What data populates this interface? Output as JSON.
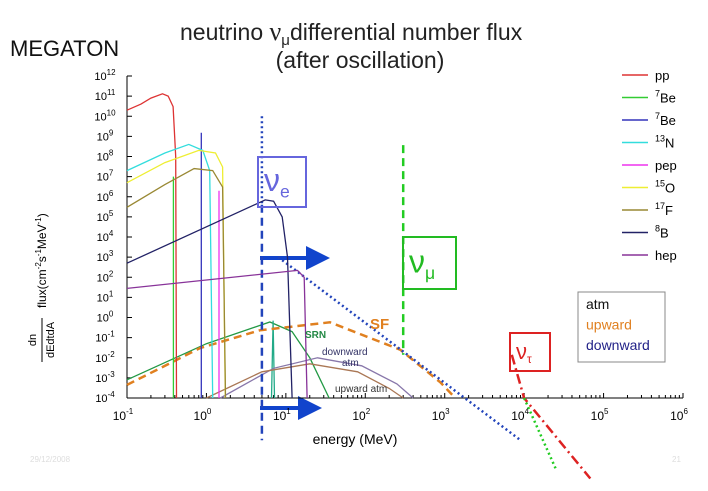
{
  "chart_data": {
    "type": "line",
    "title": "neutrino ",
    "title_symbol": "ν",
    "title_symbol_sub": "μ",
    "title_rest": "differential number flux",
    "subtitle": "(after oscillation)",
    "corner_label": "MEGATON",
    "y_label_num": "dn",
    "y_label_den": "dEdtdA",
    "y_label": [
      {
        "text": "flux(cm"
      },
      {
        "text": "-2",
        "sup": true
      },
      {
        "text": "s"
      },
      {
        "text": "-1",
        "sup": true
      },
      {
        "text": "MeV"
      },
      {
        "text": "-1",
        "sup": true
      },
      {
        "text": ")"
      }
    ],
    "x_label": "energy (MeV)",
    "log_x": true,
    "log_y": true,
    "xlim": [
      0.1,
      1000000
    ],
    "ylim": [
      0.0001,
      1000000000000
    ],
    "xticks": [
      {
        "value": 0.1,
        "label": "10",
        "power": "-1"
      },
      {
        "value": 1,
        "label": "10",
        "power": "0"
      },
      {
        "value": 10,
        "label": "10",
        "power": "1"
      },
      {
        "value": 100,
        "label": "10",
        "power": "2"
      },
      {
        "value": 1000,
        "label": "10",
        "power": "3"
      },
      {
        "value": 10000,
        "label": "10",
        "power": "4"
      },
      {
        "value": 100000,
        "label": "10",
        "power": "5"
      },
      {
        "value": 1000000,
        "label": "10",
        "power": "6"
      }
    ],
    "yticks": [
      {
        "value": 0.0001,
        "label": "10",
        "power": "-4"
      },
      {
        "value": 0.001,
        "label": "10",
        "power": "-3"
      },
      {
        "value": 0.01,
        "label": "10",
        "power": "-2"
      },
      {
        "value": 0.1,
        "label": "10",
        "power": "-1"
      },
      {
        "value": 1,
        "label": "10",
        "power": "0"
      },
      {
        "value": 10,
        "label": "10",
        "power": "1"
      },
      {
        "value": 100,
        "label": "10",
        "power": "2"
      },
      {
        "value": 1000,
        "label": "10",
        "power": "3"
      },
      {
        "value": 10000,
        "label": "10",
        "power": "4"
      },
      {
        "value": 100000,
        "label": "10",
        "power": "5"
      },
      {
        "value": 1000000,
        "label": "10",
        "power": "6"
      },
      {
        "value": 10000000,
        "label": "10",
        "power": "7"
      },
      {
        "value": 100000000,
        "label": "10",
        "power": "8"
      },
      {
        "value": 1000000000,
        "label": "10",
        "power": "9"
      },
      {
        "value": 10000000000,
        "label": "10",
        "power": "10"
      },
      {
        "value": 100000000000,
        "label": "10",
        "power": "11"
      },
      {
        "value": 1000000000000,
        "label": "10",
        "power": "12"
      }
    ],
    "legend": "right",
    "series": [
      {
        "name": "pp",
        "color": "#dd3333",
        "x": [
          0.1,
          0.15,
          0.2,
          0.28,
          0.33,
          0.38,
          0.41,
          0.42
        ],
        "values": [
          20000000000,
          40000000000,
          80000000000,
          130000000000,
          100000000000,
          30000000000,
          100000000,
          0.0001
        ]
      },
      {
        "name": "Be",
        "isotope": "7",
        "color": "#33cc33",
        "x": [
          0.384,
          0.384
        ],
        "values": [
          0.0001,
          10000000
        ]
      },
      {
        "name": "Be",
        "isotope": "7",
        "color": "#3333bb",
        "x": [
          0.862,
          0.862
        ],
        "values": [
          0.0001,
          1500000000
        ]
      },
      {
        "name": "N",
        "isotope": "13",
        "color": "#33dddd",
        "x": [
          0.1,
          0.3,
          0.6,
          0.9,
          1.1,
          1.2
        ],
        "values": [
          20000000,
          150000000,
          400000000,
          200000000,
          20000000,
          0.0001
        ]
      },
      {
        "name": "pep",
        "color": "#ee33ee",
        "x": [
          1.44,
          1.44
        ],
        "values": [
          0.0001,
          2000000
        ]
      },
      {
        "name": "O",
        "isotope": "15",
        "color": "#eeee33",
        "x": [
          0.1,
          0.3,
          0.8,
          1.3,
          1.6,
          1.73
        ],
        "values": [
          5000000,
          50000000,
          200000000,
          150000000,
          30000000,
          0.0001
        ]
      },
      {
        "name": "F",
        "isotope": "17",
        "color": "#998833",
        "x": [
          0.1,
          0.3,
          0.7,
          1.2,
          1.6,
          1.74
        ],
        "values": [
          300000,
          4000000,
          25000000,
          20000000,
          3000000,
          0.0001
        ]
      },
      {
        "name": "B",
        "isotope": "8",
        "color": "#222266",
        "x": [
          0.1,
          5.5,
          7,
          9,
          10.5,
          12
        ],
        "values": [
          500,
          700000,
          600000,
          100000,
          1000,
          0.0001
        ]
      },
      {
        "name": "hep",
        "color": "#883399",
        "x": [
          0.1,
          14,
          17,
          18.5
        ],
        "values": [
          28,
          220,
          100,
          0.0001
        ]
      }
    ],
    "other_curves": [
      {
        "label": "SRN",
        "label_color": "#228844",
        "color": "#229944",
        "x": [
          0.1,
          1,
          6.3,
          12,
          20,
          35
        ],
        "values": [
          0.0008,
          0.05,
          0.6,
          0.2,
          0.01,
          0.0001
        ]
      },
      {
        "color": "#22aa88",
        "x": [
          6.6,
          6.9,
          7.2
        ],
        "values": [
          0.0001,
          0.7,
          0.0001
        ]
      },
      {
        "label": "SF",
        "label_color": "#e08020",
        "color": "#e08020",
        "dash": "dashed",
        "width": 2.5,
        "x": [
          0.1,
          0.83,
          4.7,
          36,
          275,
          880,
          1360
        ],
        "values": [
          0.00045,
          0.03,
          0.23,
          0.58,
          0.025,
          0.0006,
          0.0001
        ]
      },
      {
        "label": "downward",
        "label2": "atm",
        "label_color": "#333366",
        "color": "#8877aa",
        "x": [
          1.5,
          7,
          25,
          90,
          250,
          400
        ],
        "values": [
          0.0001,
          0.003,
          0.01,
          0.004,
          0.0005,
          0.0001
        ]
      },
      {
        "label": "upward atm",
        "label_color": "#333333",
        "color": "#aa7755",
        "x": [
          1,
          5,
          20,
          80,
          200,
          300
        ],
        "values": [
          0.0001,
          0.002,
          0.005,
          0.002,
          0.0003,
          0.0001
        ]
      },
      {
        "color": "#2244bb",
        "dash": "dotted",
        "width": 2.5,
        "x": [
          8,
          9000
        ],
        "values": [
          1000,
          8e-07
        ]
      },
      {
        "color": "#2244bb",
        "dash": "dotted",
        "width": 2.5,
        "x": [
          5,
          5
        ],
        "values": [
          10000000000,
          400000
        ]
      },
      {
        "color": "#2244bb",
        "dash": "dashed",
        "width": 2.5,
        "x": [
          5,
          5
        ],
        "values": [
          400000,
          8e-07
        ]
      },
      {
        "color": "#22cc22",
        "dash": "dashed",
        "width": 2.5,
        "x": [
          300,
          300
        ],
        "values": [
          370000000,
          0.014
        ]
      },
      {
        "color": "#dd2222",
        "dash": "dashdot",
        "width": 2.5,
        "x": [
          7000,
          10000,
          68000
        ],
        "values": [
          0.014,
          0.0001,
          1e-08
        ]
      },
      {
        "color": "#22cc22",
        "dash": "dotted",
        "width": 2.5,
        "x": [
          10000,
          25000
        ],
        "values": [
          0.0001,
          3e-08
        ]
      }
    ],
    "flavor_boxes": [
      {
        "symbol": "ν",
        "sub": "e",
        "color": "#6666dd"
      },
      {
        "symbol": "ν",
        "sub": "μ",
        "color": "#22bb22"
      },
      {
        "symbol": "ν",
        "sub": "τ",
        "color": "#dd2222"
      }
    ],
    "atm_legend": [
      {
        "text": "atm",
        "color": "#111111"
      },
      {
        "text": "upward",
        "color": "#e08020"
      },
      {
        "text": "downward",
        "color": "#222288"
      }
    ],
    "footer_date": "29/12/2008",
    "page_number": "21"
  }
}
